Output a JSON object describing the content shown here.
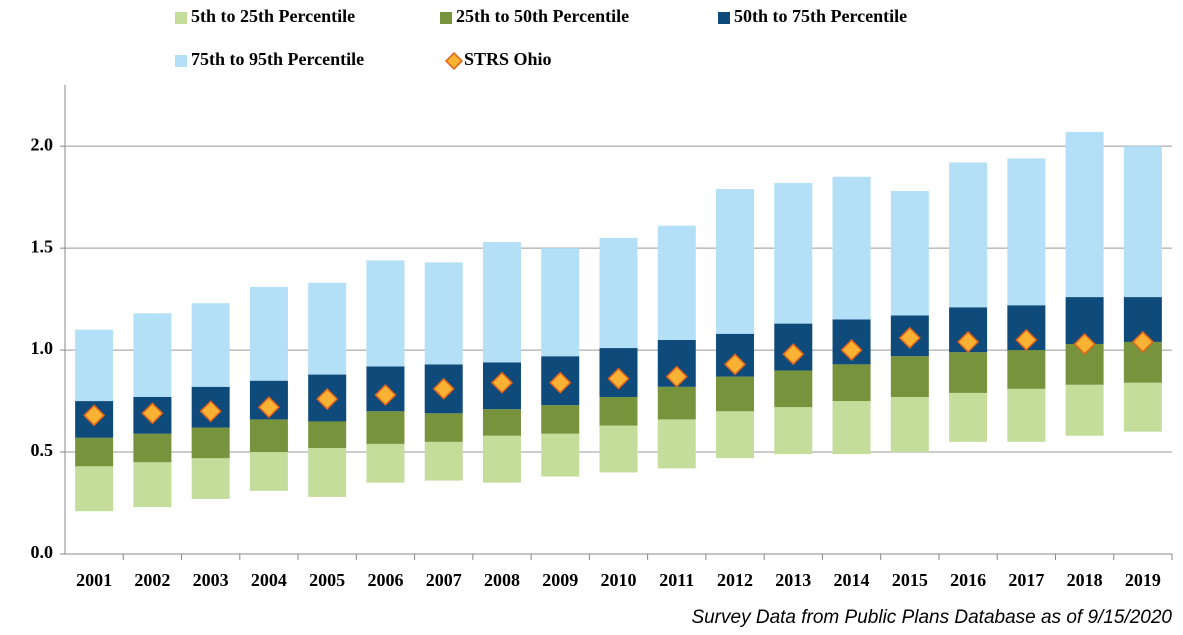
{
  "chart_data": {
    "type": "bar",
    "categories": [
      "2001",
      "2002",
      "2003",
      "2004",
      "2005",
      "2006",
      "2007",
      "2008",
      "2009",
      "2010",
      "2011",
      "2012",
      "2013",
      "2014",
      "2015",
      "2016",
      "2017",
      "2018",
      "2019"
    ],
    "series": [
      {
        "name": "5th to 25th Percentile",
        "color": "#c4dd9b",
        "values": [
          [
            0.21,
            0.43
          ],
          [
            0.23,
            0.45
          ],
          [
            0.27,
            0.47
          ],
          [
            0.31,
            0.5
          ],
          [
            0.28,
            0.52
          ],
          [
            0.35,
            0.54
          ],
          [
            0.36,
            0.55
          ],
          [
            0.35,
            0.58
          ],
          [
            0.38,
            0.59
          ],
          [
            0.4,
            0.63
          ],
          [
            0.42,
            0.66
          ],
          [
            0.47,
            0.7
          ],
          [
            0.49,
            0.72
          ],
          [
            0.49,
            0.75
          ],
          [
            0.5,
            0.77
          ],
          [
            0.55,
            0.79
          ],
          [
            0.55,
            0.81
          ],
          [
            0.58,
            0.83
          ],
          [
            0.6,
            0.84
          ]
        ]
      },
      {
        "name": "25th to 50th Percentile",
        "color": "#77933c",
        "values": [
          [
            0.43,
            0.57
          ],
          [
            0.45,
            0.59
          ],
          [
            0.47,
            0.62
          ],
          [
            0.5,
            0.66
          ],
          [
            0.52,
            0.65
          ],
          [
            0.54,
            0.7
          ],
          [
            0.55,
            0.69
          ],
          [
            0.58,
            0.71
          ],
          [
            0.59,
            0.73
          ],
          [
            0.63,
            0.77
          ],
          [
            0.66,
            0.82
          ],
          [
            0.7,
            0.87
          ],
          [
            0.72,
            0.9
          ],
          [
            0.75,
            0.93
          ],
          [
            0.77,
            0.97
          ],
          [
            0.79,
            0.99
          ],
          [
            0.81,
            1.0
          ],
          [
            0.83,
            1.03
          ],
          [
            0.84,
            1.04
          ]
        ]
      },
      {
        "name": "50th to 75th Percentile",
        "color": "#0e4a7a",
        "values": [
          [
            0.57,
            0.75
          ],
          [
            0.59,
            0.77
          ],
          [
            0.62,
            0.82
          ],
          [
            0.66,
            0.85
          ],
          [
            0.65,
            0.88
          ],
          [
            0.7,
            0.92
          ],
          [
            0.69,
            0.93
          ],
          [
            0.71,
            0.94
          ],
          [
            0.73,
            0.97
          ],
          [
            0.77,
            1.01
          ],
          [
            0.82,
            1.05
          ],
          [
            0.87,
            1.08
          ],
          [
            0.9,
            1.13
          ],
          [
            0.93,
            1.15
          ],
          [
            0.97,
            1.17
          ],
          [
            0.99,
            1.21
          ],
          [
            1.0,
            1.22
          ],
          [
            1.03,
            1.26
          ],
          [
            1.04,
            1.26
          ]
        ]
      },
      {
        "name": "75th to 95th Percentile",
        "color": "#b3dff7",
        "values": [
          [
            0.75,
            1.1
          ],
          [
            0.77,
            1.18
          ],
          [
            0.82,
            1.23
          ],
          [
            0.85,
            1.31
          ],
          [
            0.88,
            1.33
          ],
          [
            0.92,
            1.44
          ],
          [
            0.93,
            1.43
          ],
          [
            0.94,
            1.53
          ],
          [
            0.97,
            1.5
          ],
          [
            1.01,
            1.55
          ],
          [
            1.05,
            1.61
          ],
          [
            1.08,
            1.79
          ],
          [
            1.13,
            1.82
          ],
          [
            1.15,
            1.85
          ],
          [
            1.17,
            1.78
          ],
          [
            1.21,
            1.92
          ],
          [
            1.22,
            1.94
          ],
          [
            1.26,
            2.07
          ],
          [
            1.26,
            2.0
          ]
        ]
      },
      {
        "name": "STRS Ohio",
        "type": "scatter",
        "color": "#f9b233",
        "values": [
          0.68,
          0.69,
          0.7,
          0.72,
          0.76,
          0.78,
          0.81,
          0.84,
          0.84,
          0.86,
          0.87,
          0.93,
          0.98,
          1.0,
          1.06,
          1.04,
          1.05,
          1.03,
          1.04
        ]
      }
    ],
    "ylim": [
      0,
      2.3
    ],
    "yticks": [
      {
        "value": 0,
        "label": "0.0"
      },
      0.5,
      {
        "value": 1,
        "label": "1.0"
      },
      1.5,
      {
        "value": 2,
        "label": "2.0"
      }
    ],
    "grid": true,
    "source": "Survey Data from Public Plans Database as of 9/15/2020"
  }
}
